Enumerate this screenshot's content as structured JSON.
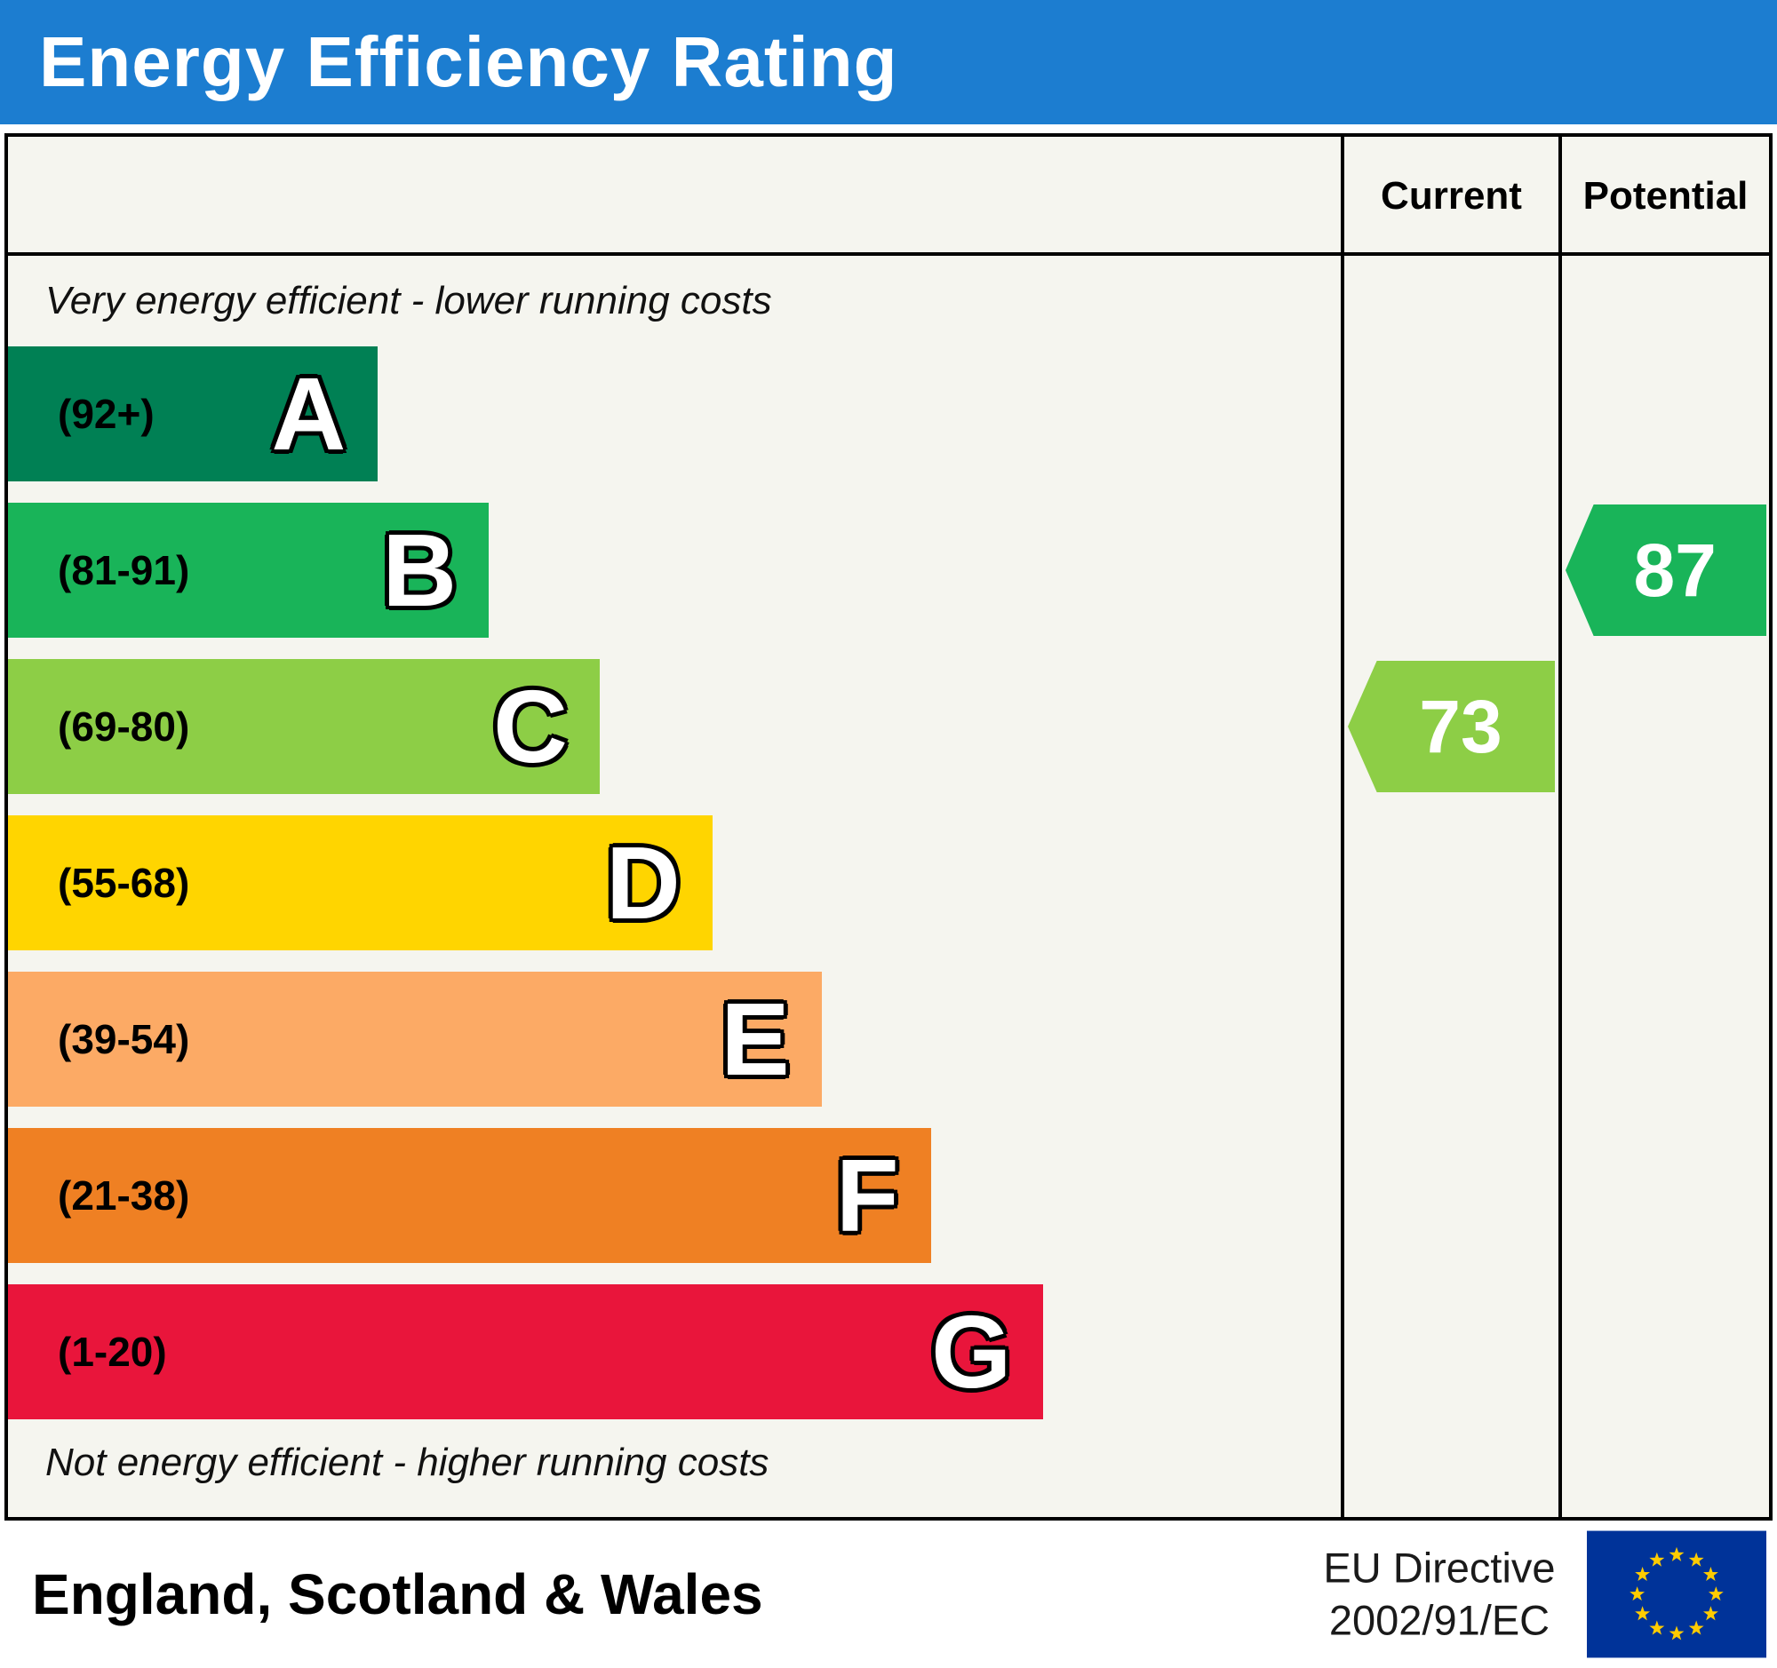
{
  "header": {
    "title": "Energy Efficiency Rating",
    "bg_color": "#1c7dd0"
  },
  "columns": {
    "current": "Current",
    "potential": "Potential"
  },
  "notes": {
    "top": "Very energy efficient - lower running costs",
    "bottom": "Not energy efficient - higher running costs"
  },
  "bands": [
    {
      "letter": "A",
      "range": "(92+)",
      "color": "#008054",
      "width_pct": 21.0
    },
    {
      "letter": "B",
      "range": "(81-91)",
      "color": "#19b459",
      "width_pct": 27.3
    },
    {
      "letter": "C",
      "range": "(69-80)",
      "color": "#8dce46",
      "width_pct": 33.6
    },
    {
      "letter": "D",
      "range": "(55-68)",
      "color": "#ffd500",
      "width_pct": 40.0
    },
    {
      "letter": "E",
      "range": "(39-54)",
      "color": "#fcaa65",
      "width_pct": 46.2
    },
    {
      "letter": "F",
      "range": "(21-38)",
      "color": "#ef8023",
      "width_pct": 52.4
    },
    {
      "letter": "G",
      "range": "(1-20)",
      "color": "#e9153b",
      "width_pct": 58.8
    }
  ],
  "ratings": {
    "current": {
      "label": "Current",
      "value": "73",
      "band": "C",
      "color": "#8dce46"
    },
    "potential": {
      "label": "Potential",
      "value": "87",
      "band": "B",
      "color": "#19b459"
    }
  },
  "footer": {
    "region": "England, Scotland & Wales",
    "directive_line1": "EU Directive",
    "directive_line2": "2002/91/EC"
  },
  "chart_data": {
    "type": "bar",
    "title": "Energy Efficiency Rating",
    "categories": [
      "A",
      "B",
      "C",
      "D",
      "E",
      "F",
      "G"
    ],
    "band_ranges": [
      "92+",
      "81-91",
      "69-80",
      "55-68",
      "39-54",
      "21-38",
      "1-20"
    ],
    "band_colors": [
      "#008054",
      "#19b459",
      "#8dce46",
      "#ffd500",
      "#fcaa65",
      "#ef8023",
      "#e9153b"
    ],
    "bar_lengths_relative": [
      21.0,
      27.3,
      33.6,
      40.0,
      46.2,
      52.4,
      58.8
    ],
    "scale": [
      1,
      100
    ],
    "markers": [
      {
        "name": "Current",
        "value": 73,
        "band": "C"
      },
      {
        "name": "Potential",
        "value": 87,
        "band": "B"
      }
    ],
    "annotations": [
      "Very energy efficient - lower running costs",
      "Not energy efficient - higher running costs",
      "England, Scotland & Wales",
      "EU Directive 2002/91/EC"
    ],
    "legend_position": "none",
    "grid": false
  }
}
